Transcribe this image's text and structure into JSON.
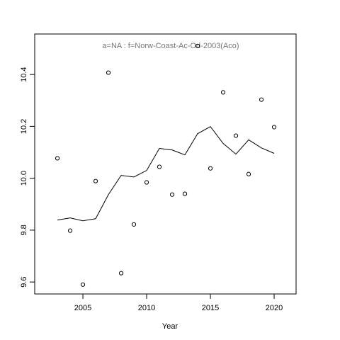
{
  "chart_data": {
    "type": "line",
    "title": "a=NA  :  f=Norw-Coast-Ac-Od-2003(Aco)",
    "title_color": "#777777",
    "xlabel": "Year",
    "x": [
      2003,
      2004,
      2005,
      2006,
      2007,
      2008,
      2009,
      2010,
      2011,
      2012,
      2013,
      2014,
      2015,
      2016,
      2017,
      2018,
      2019,
      2020
    ],
    "series": [
      {
        "style": "points",
        "color": "#000000",
        "values": [
          10.077,
          9.798,
          9.59,
          9.989,
          10.407,
          9.634,
          9.822,
          9.984,
          10.044,
          9.937,
          9.94,
          10.51,
          10.038,
          10.331,
          10.164,
          10.016,
          10.303,
          10.197
        ]
      },
      {
        "style": "line",
        "color": "#000000",
        "values": [
          9.839,
          9.847,
          9.836,
          9.844,
          9.937,
          10.011,
          10.005,
          10.03,
          10.115,
          10.109,
          10.09,
          10.172,
          10.199,
          10.134,
          10.093,
          10.148,
          10.117,
          10.096
        ]
      }
    ],
    "xlim": [
      2001.22,
      2021.72
    ],
    "xticks": [
      2005,
      2010,
      2015,
      2020
    ],
    "ylim": [
      9.554,
      10.556
    ],
    "yticks": [
      9.6,
      9.8,
      {
        "value": 10,
        "label": "10.0"
      },
      10.2,
      10.4
    ]
  }
}
